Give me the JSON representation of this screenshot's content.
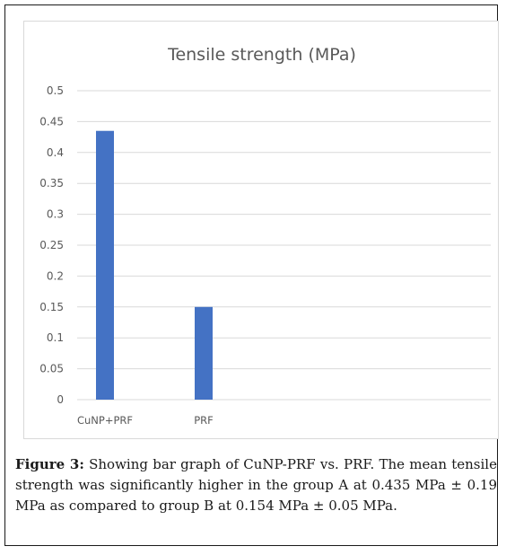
{
  "caption": {
    "label": "Figure 3:",
    "text": "Showing bar graph of CuNP-PRF vs. PRF. The mean tensile strength was significantly higher in the group A at 0.435 MPa ± 0.19 MPa as compared to group B at 0.154 MPa ± 0.05 MPa."
  },
  "chart_data": {
    "type": "bar",
    "title": "Tensile strength (MPa)",
    "categories": [
      "CuNP+PRF",
      "PRF"
    ],
    "values": [
      0.435,
      0.15
    ],
    "ylim": [
      0,
      0.5
    ],
    "yticks": [
      "0",
      "0.05",
      "0.1",
      "0.15",
      "0.2",
      "0.25",
      "0.3",
      "0.35",
      "0.4",
      "0.45",
      "0.5"
    ],
    "grid": true,
    "bar_color": "#4472c4",
    "grid_color": "#d9d9d9",
    "text_color": "#595959"
  }
}
